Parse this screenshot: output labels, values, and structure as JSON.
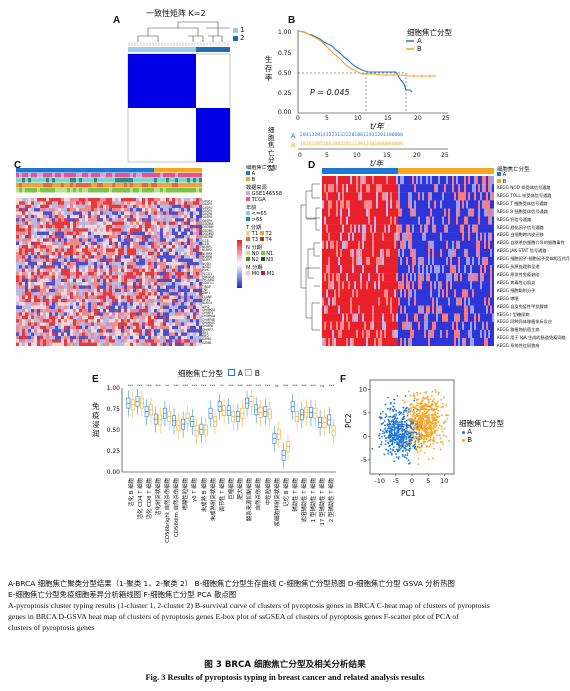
{
  "panels": {
    "A": {
      "letter": "A",
      "title": "一致性矩阵 K=2",
      "legend": [
        "1",
        "2"
      ],
      "colors": {
        "cluster1": "#9ec9e8",
        "cluster2": "#1f6fb0",
        "high": "#0000e6",
        "low": "#ffffff"
      }
    },
    "B": {
      "letter": "B",
      "ylabel": "生存率",
      "xlabel": "t/年",
      "risk_xlabel": "t/年",
      "legend_title": "细胞焦亡分型",
      "legend_items": [
        "A",
        "B"
      ],
      "pvalue": "P = 0.045",
      "y_ticks": [
        "1.00",
        "0.75",
        "0.50",
        "0.25",
        "0.00"
      ],
      "x_ticks": [
        "0",
        "5",
        "10",
        "15",
        "20",
        "25"
      ],
      "risk_title": "细胞焦亡分型",
      "risk_rows": [
        {
          "label": "A",
          "text": "204132814322313222010812431201100000"
        },
        {
          "label": "B",
          "text": "102013852661082201113812101000000000"
        }
      ],
      "colors": {
        "A": "#1f77d4",
        "B": "#f5a623"
      }
    },
    "C": {
      "letter": "C",
      "legend_groups": [
        {
          "title": "细胞焦亡分型",
          "items": [
            "A",
            "B"
          ]
        },
        {
          "title": "数据来源",
          "items": [
            "GSE146558",
            "TCGA"
          ]
        },
        {
          "title": "年龄",
          "items": [
            "<=65",
            ">65"
          ]
        },
        {
          "title": "T 分期",
          "items": [
            "T1",
            "T2",
            "T3",
            "T4"
          ]
        },
        {
          "title": "N 分期",
          "items": [
            "N0",
            "N1",
            "N2",
            "N3"
          ]
        },
        {
          "title": "M 分期",
          "items": [
            "M0",
            "M1"
          ]
        }
      ],
      "scale_ticks": [
        "4",
        "2",
        "0",
        "-2"
      ],
      "genes": [
        "CASP1",
        "CASP3",
        "CASP4",
        "CASP5",
        "CASP6",
        "CASP8",
        "CASP9",
        "GSDMA",
        "GSDMB",
        "GSDMC",
        "GSDMD",
        "GSDME",
        "IL18",
        "IL1B",
        "NLRP1",
        "NLRP2",
        "NLRP3",
        "NLRP6",
        "NLRP7",
        "NOD1",
        "NOD2",
        "PJVK",
        "PLCG1",
        "PRKACA",
        "PYCARD",
        "SCAF11",
        "TIRAP",
        "TNF",
        "ZBP1",
        "ELANE",
        "GPX4",
        "NLRC4",
        "AIM2",
        "CHMP2A",
        "CHMP3",
        "CHMP4A",
        "CHMP4B",
        "CHMP4C",
        "CHMP6",
        "CHMP7",
        "IRF1",
        "IRF2",
        "GZMA",
        "GZMB"
      ]
    },
    "D": {
      "letter": "D",
      "legend_title": "细胞焦亡分型",
      "legend_items": [
        "A",
        "B"
      ],
      "pathways": [
        "KEGG NOD 样受体信号通路",
        "KEGG TOLL 样受体信号通路",
        "KEGG T 细胞受体信号通路",
        "KEGG B 细胞受体信号通路",
        "KEGG 钙信号通路",
        "KEGG 趋化因子信号通路",
        "KEGG 白细胞跨内皮迁移",
        "KEGG 自然杀伤细胞介导的细胞毒性",
        "KEGG JAK STAT 信号通路",
        "KEGG 细胞因子-细胞因子受体相互作用",
        "KEGG 抗原处理和呈递",
        "KEGG 原发性免疫缺陷",
        "KEGG 病毒性心肌炎",
        "KEGG 细胞黏附分子",
        "KEGG 哮喘",
        "KEGG 自身免疫性甲状腺病",
        "KEGG I 型糖尿病",
        "KEGG 同种异体移植排斥反应",
        "KEGG 移植物抗宿主病",
        "KEGG 用于 IgA 生成的肠道免疫网络",
        "KEGG 系统性红斑狼疮"
      ]
    },
    "E": {
      "letter": "E",
      "ylabel": "免疫浸润",
      "legend_title": "细胞焦亡分型",
      "legend_items": [
        "A",
        "B"
      ],
      "y_ticks": [
        "1.00",
        "0.75",
        "0.50",
        "0.25",
        "0.00"
      ],
      "categories": [
        "活化 B 细胞",
        "活化 CD4 T 细胞",
        "活化 CD8 T 细胞",
        "活化树突状细胞",
        "CD56bright 自然杀伤细胞",
        "CD56dim 自然杀伤细胞",
        "嗜酸性粒细胞",
        "γδ T 细胞",
        "未成熟 B 细胞",
        "未成熟树突状细胞",
        "调节性 T 细胞",
        "巨噬细胞",
        "肥大细胞",
        "髓系来源抑制细胞",
        "自然杀伤细胞",
        "中性粒细胞",
        "浆细胞样树突状细胞",
        "记忆 B 细胞",
        "辅助性 T 细胞",
        "滤泡辅助性 T 细胞",
        "1 型辅助性 T 细胞",
        "17 型辅助性 T 细胞",
        "2 型辅助性 T 细胞"
      ],
      "medians_A": [
        0.82,
        0.84,
        0.72,
        0.63,
        0.7,
        0.61,
        0.57,
        0.6,
        0.51,
        0.7,
        0.78,
        0.73,
        0.66,
        0.82,
        0.74,
        0.72,
        0.4,
        0.2,
        0.78,
        0.68,
        0.71,
        0.59,
        0.62
      ],
      "medians_B": [
        0.8,
        0.82,
        0.74,
        0.62,
        0.66,
        0.55,
        0.64,
        0.49,
        0.5,
        0.6,
        0.73,
        0.66,
        0.7,
        0.84,
        0.71,
        0.69,
        0.45,
        0.3,
        0.66,
        0.71,
        0.7,
        0.59,
        0.49
      ],
      "significance": [
        "***",
        "***",
        "***",
        "***",
        "**",
        "***",
        "***",
        "***",
        "***",
        "***",
        "**",
        "***",
        "***",
        "***",
        "***",
        "***",
        "ns",
        "***",
        "***",
        "***",
        "***",
        "ns",
        "***"
      ]
    },
    "F": {
      "letter": "F",
      "xlabel": "PC1",
      "ylabel": "PC2",
      "legend_title": "细胞焦亡分型",
      "legend_items": [
        "A",
        "B"
      ],
      "x_ticks": [
        "-10",
        "-5",
        "0",
        "5",
        "10"
      ],
      "y_ticks": [
        "10",
        "5",
        "0",
        "-5"
      ]
    }
  },
  "caption": {
    "cn_line1": "A-BRCA 细胞焦亡聚类分型结果（1-聚类 1，2-聚类 2）  B-细胞焦亡分型生存曲线    C-细胞焦亡分型热图   D-细胞焦亡分型 GSVA 分析热图",
    "cn_line2": "E-细胞焦亡分型免疫细胞差异分析箱线图    F-细胞焦亡分型 PCA 散点图",
    "en_line1": "A-pyroptosis cluster typing results (1-cluster 1, 2-cluster 2)  B-survival curve of clusters of pyroptosis genes in BRCA  C-heat map of clusters of pyroptosis",
    "en_line2": "genes in BRCA   D-GSVA heat map of clusters of pyroptosis genes   E-box plot of ssGSEA of clusters of pyroptosis genes   F-scatter plot of PCA of",
    "en_line3": "clusters of pyroptosis genes",
    "fig_title_cn": "图 3  BRCA 细胞焦亡分型及相关分析结果",
    "fig_title_en": "Fig. 3  Results of pyroptosis typing in breast cancer and related analysis results"
  }
}
